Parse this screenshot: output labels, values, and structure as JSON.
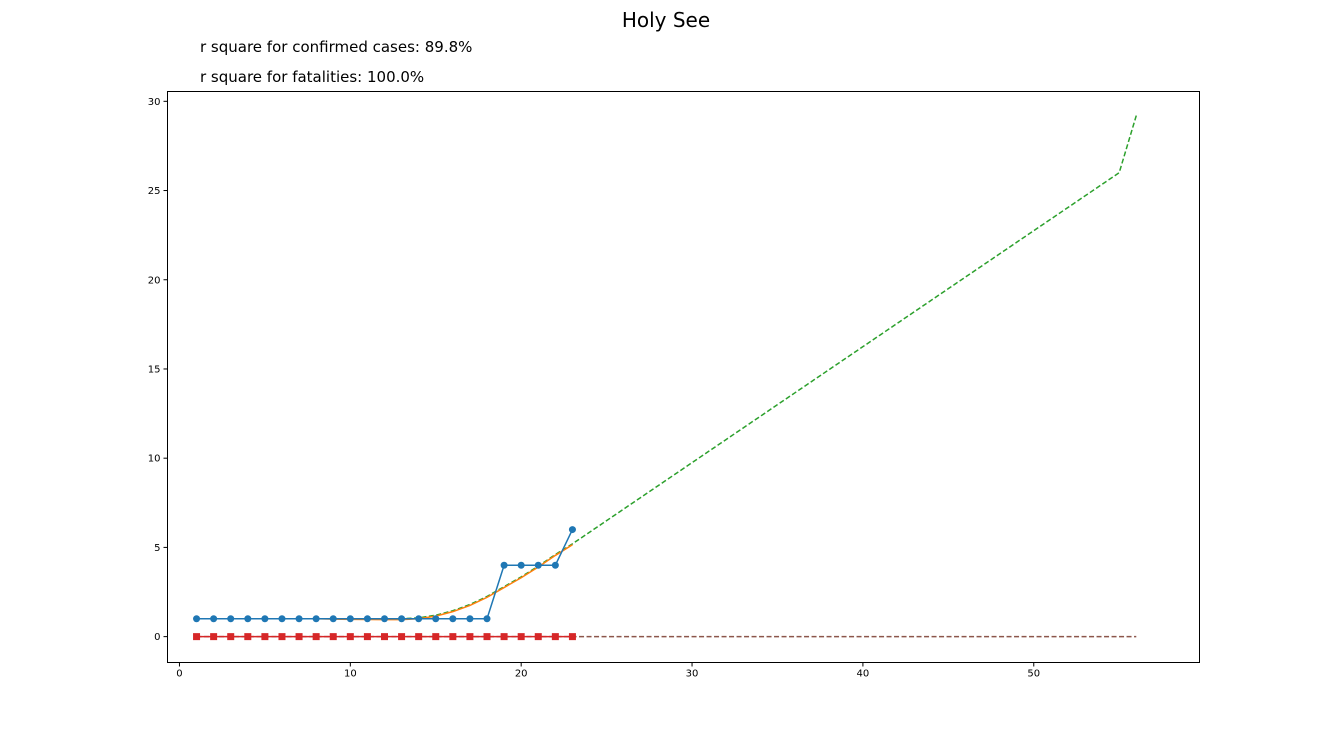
{
  "chart_data": {
    "type": "line",
    "title": "Holy See",
    "annotations": [
      "r square for confirmed cases: 89.8%",
      "r square for fatalities: 100.0%"
    ],
    "xlabel": "",
    "ylabel": "",
    "xlim": [
      -0.7,
      59.7
    ],
    "ylim": [
      -1.45,
      30.55
    ],
    "xticks": [
      0,
      10,
      20,
      30,
      40,
      50
    ],
    "yticks": [
      0,
      5,
      10,
      15,
      20,
      25,
      30
    ],
    "grid": false,
    "series": [
      {
        "kind": "fit-projection-cases",
        "color": "#2ca02c",
        "style": "dashed",
        "x": [
          1,
          2,
          3,
          4,
          5,
          6,
          7,
          8,
          9,
          10,
          11,
          12,
          13,
          14,
          15,
          16,
          17,
          18,
          19,
          20,
          21,
          22,
          23,
          24,
          25,
          26,
          27,
          28,
          29,
          30,
          31,
          32,
          33,
          34,
          35,
          36,
          37,
          38,
          39,
          40,
          41,
          42,
          43,
          44,
          45,
          46,
          47,
          48,
          49,
          50,
          51,
          52,
          53,
          54,
          55,
          56
        ],
        "values": [
          1,
          1,
          1,
          1,
          1,
          1,
          1,
          1,
          1,
          1,
          1,
          1,
          1,
          1.05,
          1.2,
          1.45,
          1.8,
          2.25,
          2.8,
          3.35,
          3.95,
          4.6,
          5.2,
          5.85,
          6.5,
          7.15,
          7.8,
          8.45,
          9.1,
          9.75,
          10.4,
          11.05,
          11.7,
          12.35,
          13.0,
          13.65,
          14.3,
          14.95,
          15.6,
          16.25,
          16.9,
          17.55,
          18.2,
          18.85,
          19.5,
          20.15,
          20.8,
          21.45,
          22.1,
          22.75,
          23.4,
          24.05,
          24.7,
          25.35,
          26.0,
          29.2
        ]
      },
      {
        "kind": "fit-cases",
        "color": "#ff7f0e",
        "style": "solid",
        "x": [
          1,
          2,
          3,
          4,
          5,
          6,
          7,
          8,
          9,
          10,
          11,
          12,
          13,
          14,
          15,
          16,
          17,
          18,
          19,
          20,
          21,
          22,
          23
        ],
        "values": [
          1,
          1,
          1,
          1,
          1,
          1,
          1,
          1,
          0.98,
          0.97,
          0.96,
          0.95,
          0.95,
          1.0,
          1.15,
          1.4,
          1.75,
          2.2,
          2.75,
          3.3,
          3.9,
          4.55,
          5.15
        ]
      },
      {
        "kind": "confirmed-cases",
        "color": "#1f77b4",
        "style": "solid",
        "marker": "circle",
        "x": [
          1,
          2,
          3,
          4,
          5,
          6,
          7,
          8,
          9,
          10,
          11,
          12,
          13,
          14,
          15,
          16,
          17,
          18,
          19,
          20,
          21,
          22,
          23
        ],
        "values": [
          1,
          1,
          1,
          1,
          1,
          1,
          1,
          1,
          1,
          1,
          1,
          1,
          1,
          1,
          1,
          1,
          1,
          1,
          4,
          4,
          4,
          4,
          6
        ]
      },
      {
        "kind": "fit-projection-fatalities",
        "color": "#8c564b",
        "style": "dashed",
        "x": [
          1,
          56
        ],
        "values": [
          0,
          0
        ]
      },
      {
        "kind": "fatalities",
        "color": "#d62728",
        "style": "solid",
        "marker": "square",
        "x": [
          1,
          2,
          3,
          4,
          5,
          6,
          7,
          8,
          9,
          10,
          11,
          12,
          13,
          14,
          15,
          16,
          17,
          18,
          19,
          20,
          21,
          22,
          23
        ],
        "values": [
          0,
          0,
          0,
          0,
          0,
          0,
          0,
          0,
          0,
          0,
          0,
          0,
          0,
          0,
          0,
          0,
          0,
          0,
          0,
          0,
          0,
          0,
          0
        ]
      }
    ]
  }
}
